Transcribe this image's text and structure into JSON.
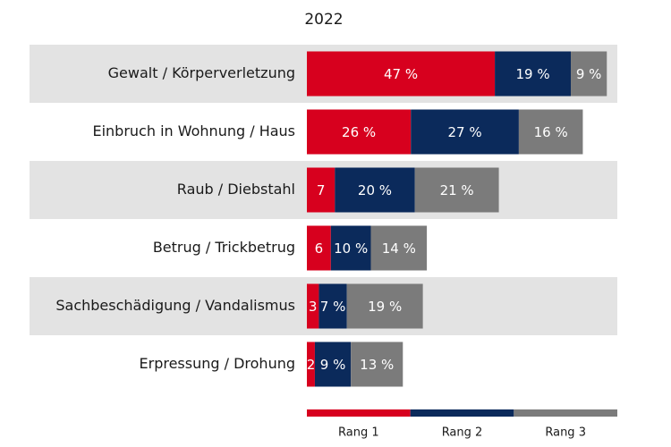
{
  "chart_data": {
    "type": "stacked-bar-horizontal",
    "title": "2022",
    "categories": [
      "Gewalt / Körperverletzung",
      "Einbruch in Wohnung / Haus",
      "Raub / Diebstahl",
      "Betrug / Trickbetrug",
      "Sachbeschädigung / Vandalismus",
      "Erpressung / Drohung"
    ],
    "series": [
      {
        "name": "Rang 1",
        "color": "#d7001e",
        "values": [
          47,
          26,
          7,
          6,
          3,
          2
        ],
        "value_labels": [
          "47 %",
          "26 %",
          "7",
          "6",
          "3",
          "2"
        ]
      },
      {
        "name": "Rang 2",
        "color": "#0b2a5b",
        "values": [
          19,
          27,
          20,
          10,
          7,
          9
        ],
        "value_labels": [
          "19 %",
          "27 %",
          "20 %",
          "10 %",
          "7 %",
          "9 %"
        ]
      },
      {
        "name": "Rang 3",
        "color": "#7b7b7b",
        "values": [
          9,
          16,
          21,
          14,
          19,
          13
        ],
        "value_labels": [
          "9 %",
          "16 %",
          "21 %",
          "14 %",
          "19 %",
          "13 %"
        ]
      }
    ]
  }
}
